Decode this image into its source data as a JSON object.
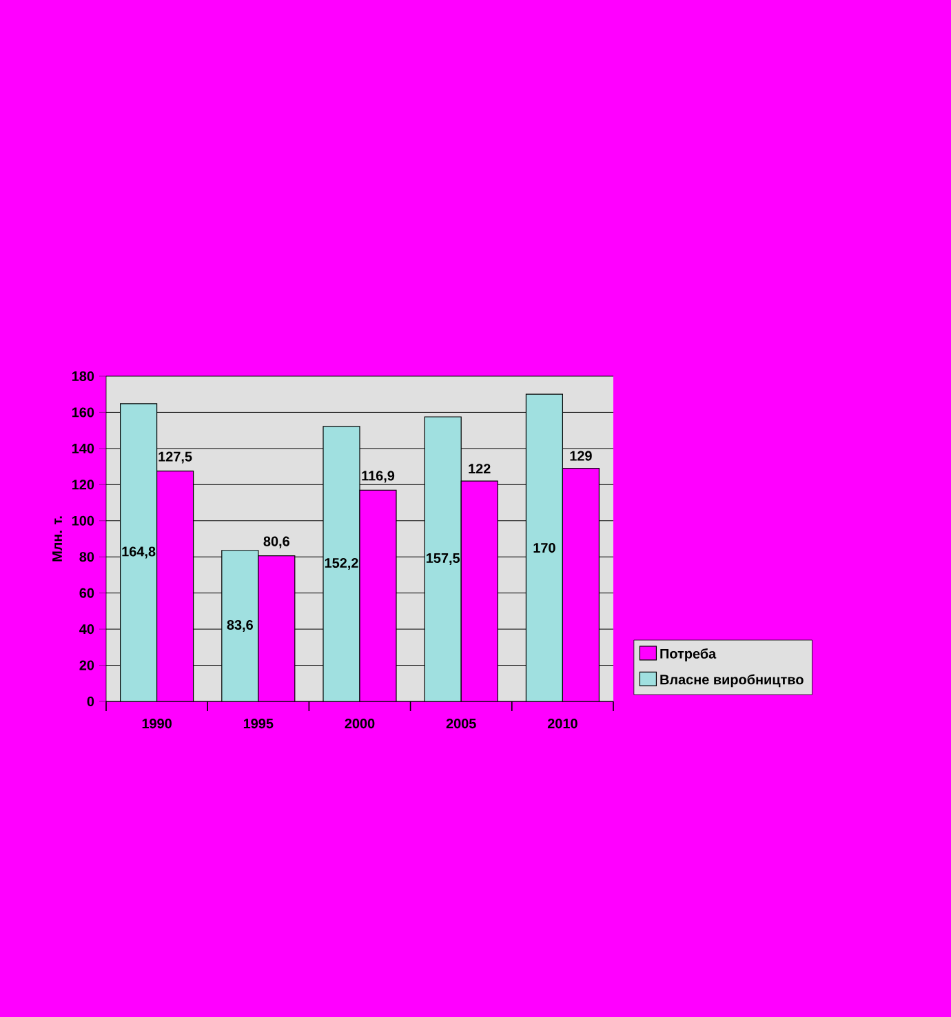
{
  "chart_data": {
    "type": "bar",
    "categories": [
      "1990",
      "1995",
      "2000",
      "2005",
      "2010"
    ],
    "ylabel": "Млн. т.",
    "ylim": [
      0,
      180
    ],
    "yticks": [
      0,
      20,
      40,
      60,
      80,
      100,
      120,
      140,
      160,
      180
    ],
    "grid": "y",
    "legend": "right",
    "series": [
      {
        "name": "Власне виробництво",
        "color": "#a0e0e0",
        "values": [
          164.8,
          83.6,
          152.2,
          157.5,
          170
        ],
        "value_labels": [
          "164,8",
          "83,6",
          "152,2",
          "157,5",
          "170"
        ]
      },
      {
        "name": "Потреба",
        "color": "#ff00ff",
        "values": [
          127.5,
          80.6,
          116.9,
          122,
          129
        ],
        "value_labels": [
          "127,5",
          "80,6",
          "116,9",
          "122",
          "129"
        ]
      }
    ]
  }
}
